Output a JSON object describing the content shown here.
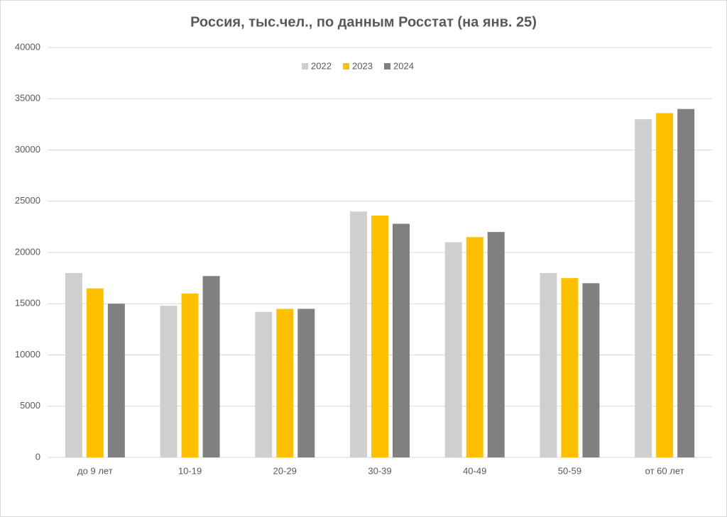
{
  "chart_data": {
    "type": "bar",
    "title": "Россия, тыс.чел., по данным Росстат (на янв. 25)",
    "categories": [
      "до 9 лет",
      "10-19",
      "20-29",
      "30-39",
      "40-49",
      "50-59",
      "от 60 лет"
    ],
    "series": [
      {
        "name": "2022",
        "color": "#d0cece",
        "values": [
          18000,
          14800,
          14200,
          24000,
          21000,
          18000,
          33000
        ]
      },
      {
        "name": "2023",
        "color": "#ffc000",
        "values": [
          16500,
          16000,
          14500,
          23600,
          21500,
          17500,
          33600
        ]
      },
      {
        "name": "2024",
        "color": "#808080",
        "values": [
          15000,
          17700,
          14500,
          22800,
          22000,
          17000,
          34000
        ]
      }
    ],
    "ylim": [
      0,
      40000
    ],
    "yticks": [
      0,
      5000,
      10000,
      15000,
      20000,
      25000,
      30000,
      35000,
      40000
    ],
    "grid": true,
    "legend": "top"
  }
}
